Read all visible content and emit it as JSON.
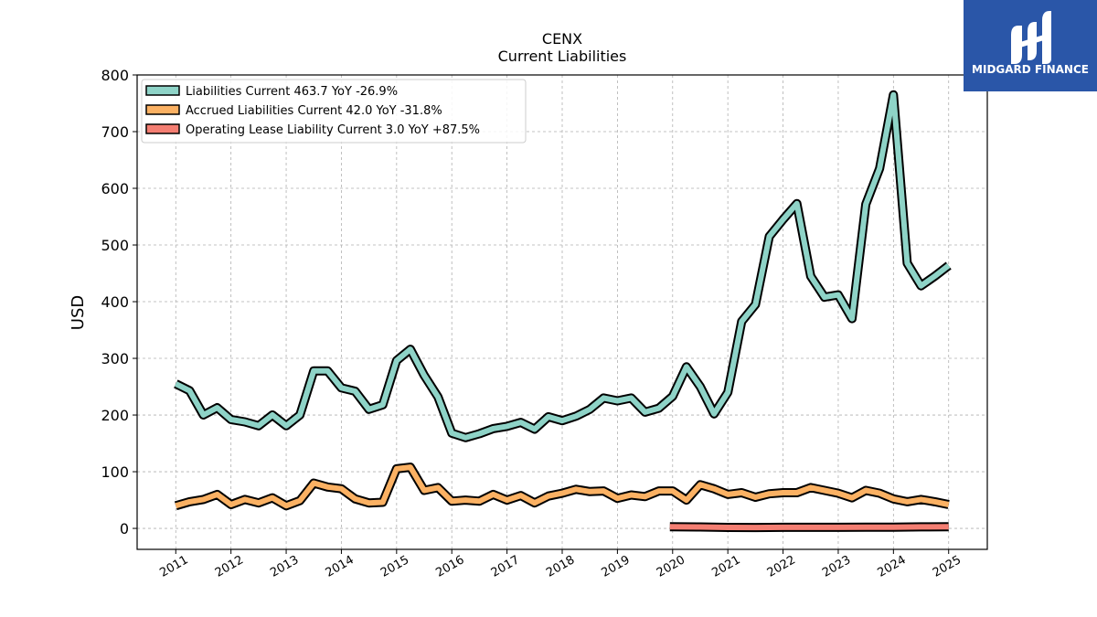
{
  "logo": {
    "text": "MIDGARD FINANCE",
    "color": "#2a56a8"
  },
  "chart_data": {
    "type": "line",
    "title": "CENX",
    "subtitle": "Current  Liabilities",
    "ylabel": "USD",
    "xlabel": "",
    "ylim": [
      -37,
      800
    ],
    "xlim": [
      2010.3,
      2025.7
    ],
    "yticks": [
      0,
      100,
      200,
      300,
      400,
      500,
      600,
      700,
      800
    ],
    "xticks": [
      "2011",
      "2012",
      "2013",
      "2014",
      "2015",
      "2016",
      "2017",
      "2018",
      "2019",
      "2020",
      "2021",
      "2022",
      "2023",
      "2024",
      "2025"
    ],
    "grid": true,
    "legend_position": "top-left",
    "series": [
      {
        "name": "Liabilities Current",
        "legend": "Liabilities Current  463.7 YoY -26.9%",
        "color": "#8ed3c7",
        "points": [
          [
            2011.0,
            255
          ],
          [
            2011.25,
            243
          ],
          [
            2011.5,
            200
          ],
          [
            2011.75,
            213
          ],
          [
            2012.0,
            192
          ],
          [
            2012.25,
            188
          ],
          [
            2012.5,
            181
          ],
          [
            2012.75,
            200
          ],
          [
            2013.0,
            181
          ],
          [
            2013.25,
            200
          ],
          [
            2013.5,
            278
          ],
          [
            2013.75,
            278
          ],
          [
            2014.0,
            248
          ],
          [
            2014.25,
            242
          ],
          [
            2014.5,
            210
          ],
          [
            2014.75,
            218
          ],
          [
            2015.0,
            296
          ],
          [
            2015.25,
            316
          ],
          [
            2015.5,
            270
          ],
          [
            2015.75,
            232
          ],
          [
            2016.0,
            168
          ],
          [
            2016.25,
            160
          ],
          [
            2016.5,
            167
          ],
          [
            2016.75,
            176
          ],
          [
            2017.0,
            180
          ],
          [
            2017.25,
            187
          ],
          [
            2017.5,
            175
          ],
          [
            2017.75,
            197
          ],
          [
            2018.0,
            190
          ],
          [
            2018.25,
            198
          ],
          [
            2018.5,
            210
          ],
          [
            2018.75,
            230
          ],
          [
            2019.0,
            225
          ],
          [
            2019.25,
            230
          ],
          [
            2019.5,
            205
          ],
          [
            2019.75,
            212
          ],
          [
            2020.0,
            233
          ],
          [
            2020.25,
            285
          ],
          [
            2020.5,
            250
          ],
          [
            2020.75,
            202
          ],
          [
            2021.0,
            240
          ],
          [
            2021.25,
            365
          ],
          [
            2021.5,
            395
          ],
          [
            2021.75,
            515
          ],
          [
            2022.0,
            545
          ],
          [
            2022.25,
            573
          ],
          [
            2022.5,
            445
          ],
          [
            2022.75,
            408
          ],
          [
            2023.0,
            412
          ],
          [
            2023.25,
            370
          ],
          [
            2023.5,
            572
          ],
          [
            2023.75,
            635
          ],
          [
            2024.0,
            765
          ],
          [
            2024.25,
            468
          ],
          [
            2024.5,
            428
          ],
          [
            2024.75,
            445
          ],
          [
            2025.0,
            463.7
          ]
        ]
      },
      {
        "name": "Accrued Liabilities Current",
        "legend": "Accrued Liabilities Current  42.0 YoY -31.8%",
        "color": "#fbb163",
        "points": [
          [
            2011.0,
            40
          ],
          [
            2011.25,
            47
          ],
          [
            2011.5,
            51
          ],
          [
            2011.75,
            60
          ],
          [
            2012.0,
            42
          ],
          [
            2012.25,
            51
          ],
          [
            2012.5,
            45
          ],
          [
            2012.75,
            54
          ],
          [
            2013.0,
            40
          ],
          [
            2013.25,
            49
          ],
          [
            2013.5,
            80
          ],
          [
            2013.75,
            73
          ],
          [
            2014.0,
            70
          ],
          [
            2014.25,
            52
          ],
          [
            2014.5,
            45
          ],
          [
            2014.75,
            46
          ],
          [
            2015.0,
            105
          ],
          [
            2015.25,
            108
          ],
          [
            2015.5,
            67
          ],
          [
            2015.75,
            72
          ],
          [
            2016.0,
            48
          ],
          [
            2016.25,
            50
          ],
          [
            2016.5,
            48
          ],
          [
            2016.75,
            60
          ],
          [
            2017.0,
            50
          ],
          [
            2017.25,
            58
          ],
          [
            2017.5,
            45
          ],
          [
            2017.75,
            57
          ],
          [
            2018.0,
            62
          ],
          [
            2018.25,
            69
          ],
          [
            2018.5,
            65
          ],
          [
            2018.75,
            66
          ],
          [
            2019.0,
            53
          ],
          [
            2019.25,
            59
          ],
          [
            2019.5,
            56
          ],
          [
            2019.75,
            66
          ],
          [
            2020.0,
            66
          ],
          [
            2020.25,
            50
          ],
          [
            2020.5,
            77
          ],
          [
            2020.75,
            70
          ],
          [
            2021.0,
            60
          ],
          [
            2021.25,
            63
          ],
          [
            2021.5,
            55
          ],
          [
            2021.75,
            61
          ],
          [
            2022.0,
            63
          ],
          [
            2022.25,
            63
          ],
          [
            2022.5,
            72
          ],
          [
            2022.75,
            67
          ],
          [
            2023.0,
            62
          ],
          [
            2023.25,
            54
          ],
          [
            2023.5,
            67
          ],
          [
            2023.75,
            62
          ],
          [
            2024.0,
            52
          ],
          [
            2024.25,
            47
          ],
          [
            2024.5,
            51
          ],
          [
            2024.75,
            47
          ],
          [
            2025.0,
            42.0
          ]
        ]
      },
      {
        "name": "Operating Lease Liability Current",
        "legend": "Operating Lease Liability Current  3.0 YoY +87.5%",
        "color": "#f47e72",
        "points": [
          [
            2019.95,
            3.0
          ],
          [
            2020.5,
            2.5
          ],
          [
            2021.0,
            1.7
          ],
          [
            2021.5,
            1.6
          ],
          [
            2022.0,
            1.8
          ],
          [
            2022.5,
            1.9
          ],
          [
            2023.0,
            1.9
          ],
          [
            2023.5,
            2.0
          ],
          [
            2024.0,
            2.2
          ],
          [
            2024.5,
            2.6
          ],
          [
            2025.0,
            3.0
          ]
        ]
      }
    ]
  }
}
